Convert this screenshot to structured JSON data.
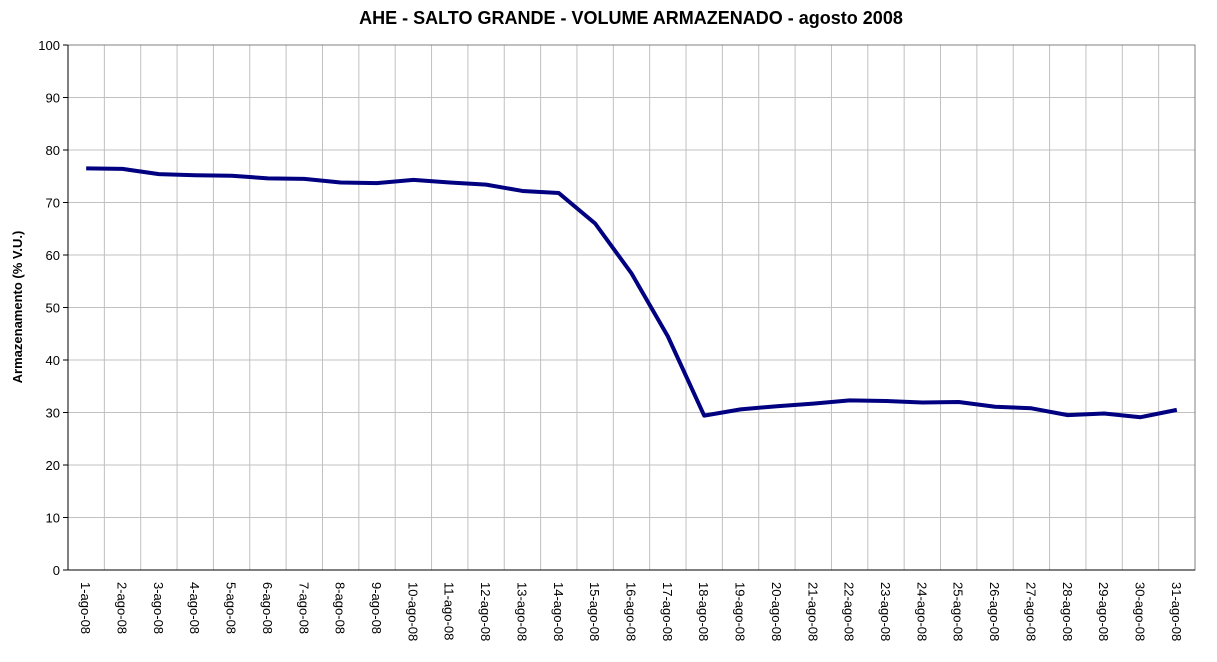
{
  "chart_data": {
    "type": "line",
    "title": "AHE - SALTO GRANDE - VOLUME ARMAZENADO - agosto 2008",
    "y_label": "Armazenamento (% V.U.)",
    "categories": [
      "1-ago-08",
      "2-ago-08",
      "3-ago-08",
      "4-ago-08",
      "5-ago-08",
      "6-ago-08",
      "7-ago-08",
      "8-ago-08",
      "9-ago-08",
      "10-ago-08",
      "11-ago-08",
      "12-ago-08",
      "13-ago-08",
      "14-ago-08",
      "15-ago-08",
      "16-ago-08",
      "17-ago-08",
      "18-ago-08",
      "19-ago-08",
      "20-ago-08",
      "21-ago-08",
      "22-ago-08",
      "23-ago-08",
      "24-ago-08",
      "25-ago-08",
      "26-ago-08",
      "27-ago-08",
      "28-ago-08",
      "29-ago-08",
      "30-ago-08",
      "31-ago-08"
    ],
    "series": [
      {
        "name": "Armazenamento",
        "color": "#000080",
        "values": [
          76.5,
          76.4,
          75.4,
          75.2,
          75.1,
          74.6,
          74.5,
          73.8,
          73.7,
          74.3,
          73.8,
          73.4,
          72.2,
          71.8,
          66,
          56.5,
          44.5,
          29.4,
          30.6,
          31.2,
          31.7,
          32.3,
          32.2,
          31.9,
          32.0,
          31.1,
          30.8,
          29.5,
          29.8,
          29.1,
          30.5
        ]
      }
    ],
    "ylim": [
      0,
      100
    ],
    "yticks": [
      0,
      10,
      20,
      30,
      40,
      50,
      60,
      70,
      80,
      90,
      100
    ],
    "grid": true
  }
}
